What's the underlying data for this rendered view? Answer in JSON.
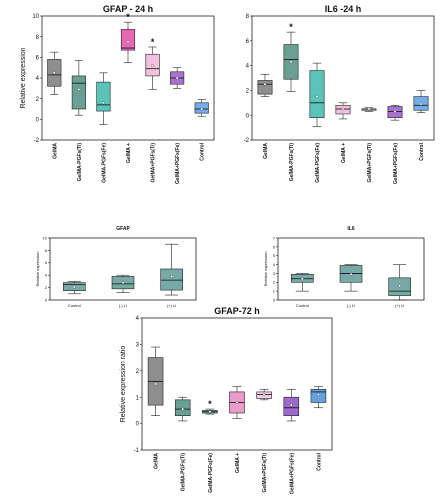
{
  "chart_data": [
    {
      "type": "box",
      "title": "GFAP - 24 h",
      "ylabel": "Relative expression",
      "ylim": [
        -2,
        10
      ],
      "yticks": [
        "-2",
        "0",
        "2",
        "4",
        "6",
        "8",
        "10"
      ],
      "categories": [
        "GelMA",
        "GelMA-PGFs(Ti)",
        "GelMA-PGFs(Fe)",
        "GelMA +",
        "GelMA+PGFs(Ti)",
        "GelMA+PGFs(Fe)",
        "Control"
      ],
      "boxes": [
        {
          "min": 2.4,
          "q1": 3.2,
          "median": 4.3,
          "q3": 5.8,
          "max": 6.5,
          "mean": 4.5,
          "color": "#7a7a7a",
          "sig": ""
        },
        {
          "min": 0.4,
          "q1": 1.0,
          "median": 3.5,
          "q3": 4.2,
          "max": 5.7,
          "mean": 2.9,
          "color": "#4f8f80",
          "sig": ""
        },
        {
          "min": -0.5,
          "q1": 0.8,
          "median": 1.4,
          "q3": 3.6,
          "max": 4.5,
          "mean": 1.6,
          "color": "#3cb8b0",
          "sig": ""
        },
        {
          "min": 5.5,
          "q1": 6.7,
          "median": 6.9,
          "q3": 8.7,
          "max": 9.4,
          "mean": 7.5,
          "color": "#e24ea7",
          "sig": "*"
        },
        {
          "min": 2.9,
          "q1": 4.2,
          "median": 4.9,
          "q3": 6.3,
          "max": 7.0,
          "mean": 5.2,
          "color": "#f1b6d8",
          "sig": "*"
        },
        {
          "min": 3.0,
          "q1": 3.4,
          "median": 4.0,
          "q3": 4.6,
          "max": 5.0,
          "mean": 4.0,
          "color": "#9b59c8",
          "sig": ""
        },
        {
          "min": 0.3,
          "q1": 0.6,
          "median": 1.0,
          "q3": 1.6,
          "max": 1.9,
          "mean": 1.0,
          "color": "#5aa0e6",
          "sig": ""
        }
      ]
    },
    {
      "type": "box",
      "title": "IL6 -24 h",
      "ylabel": "",
      "ylim": [
        -2,
        8
      ],
      "yticks": [
        "-2",
        "0",
        "2",
        "4",
        "6",
        "8"
      ],
      "categories": [
        "GelMA",
        "GelMA-PGFs(Ti)",
        "GelMA-PGFs(Fe)",
        "GelMA +",
        "GelMA+PGFs(Ti)",
        "GelMA+PGFs(Fe)",
        "Control"
      ],
      "boxes": [
        {
          "min": 1.5,
          "q1": 1.7,
          "median": 2.5,
          "q3": 2.8,
          "max": 3.3,
          "mean": 2.5,
          "color": "#7a7a7a",
          "sig": ""
        },
        {
          "min": 1.9,
          "q1": 2.9,
          "median": 4.5,
          "q3": 5.7,
          "max": 6.7,
          "mean": 4.3,
          "color": "#4f8f80",
          "sig": "*"
        },
        {
          "min": -0.9,
          "q1": -0.2,
          "median": 1.0,
          "q3": 3.6,
          "max": 4.2,
          "mean": 1.5,
          "color": "#3cb8b0",
          "sig": ""
        },
        {
          "min": -0.3,
          "q1": 0.1,
          "median": 0.5,
          "q3": 0.8,
          "max": 1.0,
          "mean": 0.5,
          "color": "#f1b6d8",
          "sig": ""
        },
        {
          "min": 0.3,
          "q1": 0.4,
          "median": 0.5,
          "q3": 0.5,
          "max": 0.6,
          "mean": 0.5,
          "color": "#f1b6d8",
          "sig": ""
        },
        {
          "min": -0.4,
          "q1": -0.2,
          "median": 0.3,
          "q3": 0.7,
          "max": 0.8,
          "mean": 0.3,
          "color": "#9b59c8",
          "sig": ""
        },
        {
          "min": 0.2,
          "q1": 0.4,
          "median": 0.8,
          "q3": 1.5,
          "max": 2.0,
          "mean": 0.9,
          "color": "#5aa0e6",
          "sig": ""
        }
      ]
    },
    {
      "type": "box",
      "title": "GFAP",
      "ylabel": "Relative expression",
      "ylim": [
        0,
        10
      ],
      "yticks": [
        "0",
        "2",
        "4",
        "6",
        "8",
        "10"
      ],
      "categories": [
        "Control",
        "(-) LI",
        "(+) LI"
      ],
      "boxes": [
        {
          "min": 1.0,
          "q1": 1.5,
          "median": 2.5,
          "q3": 2.8,
          "max": 3.0,
          "mean": 2.1,
          "color": "#5f9a96",
          "sig": ""
        },
        {
          "min": 1.2,
          "q1": 1.8,
          "median": 2.6,
          "q3": 3.8,
          "max": 4.0,
          "mean": 2.8,
          "color": "#5f9a96",
          "sig": ""
        },
        {
          "min": 0.8,
          "q1": 1.6,
          "median": 3.2,
          "q3": 5.0,
          "max": 9.0,
          "mean": 3.8,
          "color": "#5f9a96",
          "sig": ""
        }
      ]
    },
    {
      "type": "box",
      "title": "IL6",
      "ylabel": "Relative expression",
      "ylim": [
        0,
        7
      ],
      "yticks": [
        "0",
        "1",
        "2",
        "3",
        "4",
        "5",
        "6",
        "7"
      ],
      "categories": [
        "Control",
        "(-) LI",
        "(+) LI"
      ],
      "boxes": [
        {
          "min": 1.0,
          "q1": 2.0,
          "median": 2.4,
          "q3": 2.9,
          "max": 3.0,
          "mean": 2.4,
          "color": "#5f9a96",
          "sig": ""
        },
        {
          "min": 1.0,
          "q1": 2.0,
          "median": 3.0,
          "q3": 3.9,
          "max": 4.0,
          "mean": 2.9,
          "color": "#5f9a96",
          "sig": ""
        },
        {
          "min": 0.0,
          "q1": 0.5,
          "median": 1.0,
          "q3": 2.5,
          "max": 4.0,
          "mean": 1.6,
          "color": "#5f9a96",
          "sig": ""
        }
      ]
    },
    {
      "type": "box",
      "title": "GFAP-72 h",
      "ylabel": "Relative expression ratio",
      "ylim": [
        -1,
        4
      ],
      "yticks": [
        "-1",
        "0",
        "1",
        "2",
        "3",
        "4"
      ],
      "categories": [
        "GelMA",
        "GelMA-PGFs(Ti)",
        "GelMA-PGFs(Fe)",
        "GelMA +",
        "GelMA+PGFs(Ti)",
        "GelMA+PGFs(Fe)",
        "Control"
      ],
      "boxes": [
        {
          "min": 0.3,
          "q1": 0.7,
          "median": 1.6,
          "q3": 2.5,
          "max": 2.9,
          "mean": 1.5,
          "color": "#7a7a7a",
          "sig": ""
        },
        {
          "min": 0.1,
          "q1": 0.3,
          "median": 0.55,
          "q3": 0.9,
          "max": 1.0,
          "mean": 0.55,
          "color": "#4f8f80",
          "sig": ""
        },
        {
          "min": 0.36,
          "q1": 0.4,
          "median": 0.45,
          "q3": 0.5,
          "max": 0.55,
          "mean": 0.45,
          "color": "#2fb5a8",
          "sig": "*"
        },
        {
          "min": 0.2,
          "q1": 0.4,
          "median": 0.8,
          "q3": 1.2,
          "max": 1.4,
          "mean": 0.8,
          "color": "#e88ac0",
          "sig": ""
        },
        {
          "min": 0.9,
          "q1": 0.95,
          "median": 1.1,
          "q3": 1.2,
          "max": 1.3,
          "mean": 1.1,
          "color": "#f3c6e0",
          "sig": ""
        },
        {
          "min": 0.1,
          "q1": 0.3,
          "median": 0.6,
          "q3": 1.0,
          "max": 1.3,
          "mean": 0.7,
          "color": "#8f4fc4",
          "sig": ""
        },
        {
          "min": 0.6,
          "q1": 0.8,
          "median": 1.2,
          "q3": 1.3,
          "max": 1.4,
          "mean": 1.1,
          "color": "#4a90d9",
          "sig": ""
        }
      ]
    }
  ]
}
